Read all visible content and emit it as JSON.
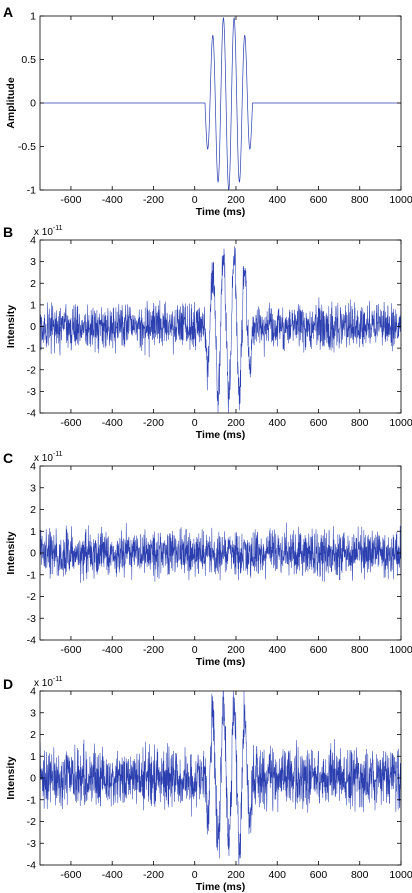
{
  "panel_labels": [
    "A",
    "B",
    "C",
    "D"
  ],
  "exponent_label": {
    "base": "x 10",
    "exp": "-11"
  },
  "trace_color": "#2b3fb0",
  "chart_data": [
    {
      "type": "line",
      "panel": "A",
      "xlabel": "Time (ms)",
      "ylabel": "Amplitude",
      "xlim": [
        -750,
        1000
      ],
      "ylim": [
        -1,
        1
      ],
      "xticks": [
        -600,
        -400,
        -200,
        0,
        200,
        400,
        600,
        800,
        1000
      ],
      "yticks": [
        -1,
        -0.5,
        0,
        0.5,
        1
      ],
      "ytick_labels": [
        "-1",
        "-0.5",
        "0",
        "0.5",
        "1"
      ],
      "signal": {
        "kind": "tone burst",
        "center_ms": 165,
        "period_ms": 52,
        "half_width_ms": 115,
        "amplitude": 1
      },
      "series": [
        {
          "x": [
            -750,
            55,
            80,
            108,
            135,
            160,
            187,
            213,
            240,
            268,
            290,
            1000
          ],
          "y": [
            0,
            0,
            0.32,
            -1,
            1,
            -1,
            1,
            -1,
            1,
            0.5,
            0,
            0
          ]
        }
      ]
    },
    {
      "type": "line",
      "panel": "B",
      "xlabel": "Time (ms)",
      "ylabel": "Intensity",
      "exponent": "x 10^-11",
      "xlim": [
        -750,
        1000
      ],
      "ylim": [
        -4,
        4
      ],
      "xticks": [
        -600,
        -400,
        -200,
        0,
        200,
        400,
        600,
        800,
        1000
      ],
      "yticks": [
        -4,
        -3,
        -2,
        -1,
        0,
        1,
        2,
        3,
        4
      ],
      "signal": {
        "noise_amplitude": 1.5,
        "burst_amplitude": 4,
        "center_ms": 165,
        "period_ms": 52,
        "half_width_ms": 115
      }
    },
    {
      "type": "line",
      "panel": "C",
      "xlabel": "Time (ms)",
      "ylabel": "Intensity",
      "exponent": "x 10^-11",
      "xlim": [
        -750,
        1000
      ],
      "ylim": [
        -4,
        4
      ],
      "xticks": [
        -600,
        -400,
        -200,
        0,
        200,
        400,
        600,
        800,
        1000
      ],
      "yticks": [
        -4,
        -3,
        -2,
        -1,
        0,
        1,
        2,
        3,
        4
      ],
      "signal": {
        "noise_amplitude": 1.5,
        "burst_amplitude": 0,
        "center_ms": 165,
        "period_ms": 52,
        "half_width_ms": 115
      }
    },
    {
      "type": "line",
      "panel": "D",
      "xlabel": "Time (ms)",
      "ylabel": "Intensity",
      "exponent": "x 10^-11",
      "xlim": [
        -750,
        1000
      ],
      "ylim": [
        -4,
        4
      ],
      "xticks": [
        -600,
        -400,
        -200,
        0,
        200,
        400,
        600,
        800,
        1000
      ],
      "yticks": [
        -4,
        -3,
        -2,
        -1,
        0,
        1,
        2,
        3,
        4
      ],
      "signal": {
        "noise_amplitude": 2,
        "burst_amplitude": 4,
        "center_ms": 165,
        "period_ms": 52,
        "half_width_ms": 115
      }
    }
  ]
}
